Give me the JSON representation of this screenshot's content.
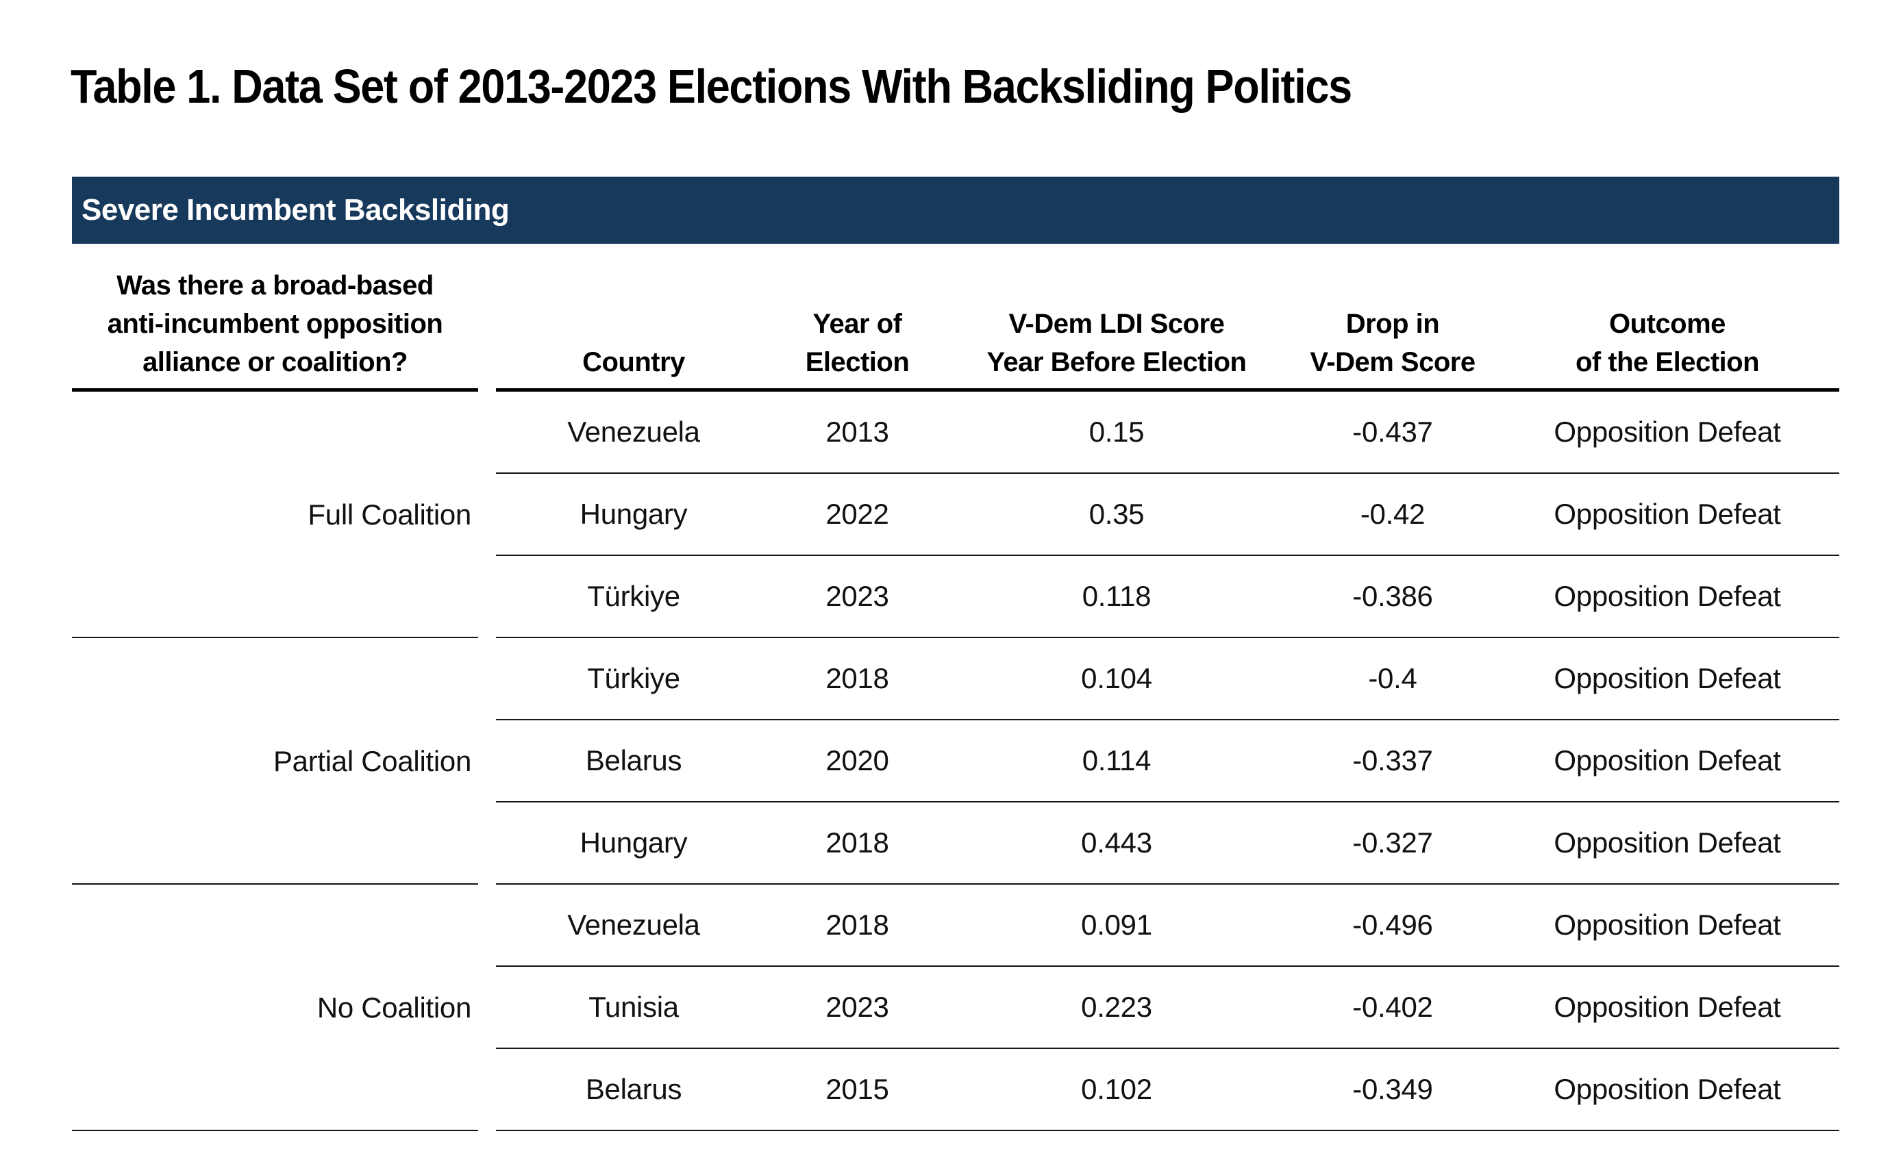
{
  "title": "Table 1. Data Set of 2013-2023 Elections With Backsliding Politics",
  "section_header": "Severe Incumbent Backsliding",
  "colors": {
    "section_bar_bg": "#17395C",
    "section_bar_text": "#FFFFFF",
    "rule_heavy": "#000000",
    "rule_light": "#141414",
    "text": "#111111"
  },
  "headers": {
    "coalition": [
      "Was there a broad-based",
      "anti-incumbent opposition",
      "alliance or coalition?"
    ],
    "country": [
      "Country"
    ],
    "year": [
      "Year of",
      "Election"
    ],
    "ldi": [
      "V-Dem LDI Score",
      "Year Before Election"
    ],
    "drop": [
      "Drop in",
      "V-Dem Score"
    ],
    "outcome": [
      "Outcome",
      "of the Election"
    ]
  },
  "groups": [
    {
      "label": "Full Coalition",
      "rows": [
        {
          "country": "Venezuela",
          "year": "2013",
          "ldi": "0.15",
          "drop": "-0.437",
          "outcome": "Opposition Defeat"
        },
        {
          "country": "Hungary",
          "year": "2022",
          "ldi": "0.35",
          "drop": "-0.42",
          "outcome": "Opposition Defeat"
        },
        {
          "country": "Türkiye",
          "year": "2023",
          "ldi": "0.118",
          "drop": "-0.386",
          "outcome": "Opposition Defeat"
        }
      ]
    },
    {
      "label": "Partial Coalition",
      "rows": [
        {
          "country": "Türkiye",
          "year": "2018",
          "ldi": "0.104",
          "drop": "-0.4",
          "outcome": "Opposition Defeat"
        },
        {
          "country": "Belarus",
          "year": "2020",
          "ldi": "0.114",
          "drop": "-0.337",
          "outcome": "Opposition Defeat"
        },
        {
          "country": "Hungary",
          "year": "2018",
          "ldi": "0.443",
          "drop": "-0.327",
          "outcome": "Opposition Defeat"
        }
      ]
    },
    {
      "label": "No Coalition",
      "rows": [
        {
          "country": "Venezuela",
          "year": "2018",
          "ldi": "0.091",
          "drop": "-0.496",
          "outcome": "Opposition Defeat"
        },
        {
          "country": "Tunisia",
          "year": "2023",
          "ldi": "0.223",
          "drop": "-0.402",
          "outcome": "Opposition Defeat"
        },
        {
          "country": "Belarus",
          "year": "2015",
          "ldi": "0.102",
          "drop": "-0.349",
          "outcome": "Opposition Defeat"
        }
      ]
    }
  ],
  "chart_data": {
    "type": "table",
    "title": "Table 1. Data Set of 2013-2023 Elections With Backsliding Politics",
    "section": "Severe Incumbent Backsliding",
    "columns": [
      "Was there a broad-based anti-incumbent opposition alliance or coalition?",
      "Country",
      "Year of Election",
      "V-Dem LDI Score Year Before Election",
      "Drop in V-Dem Score",
      "Outcome of the Election"
    ],
    "rows": [
      [
        "Full Coalition",
        "Venezuela",
        2013,
        0.15,
        -0.437,
        "Opposition Defeat"
      ],
      [
        "Full Coalition",
        "Hungary",
        2022,
        0.35,
        -0.42,
        "Opposition Defeat"
      ],
      [
        "Full Coalition",
        "Türkiye",
        2023,
        0.118,
        -0.386,
        "Opposition Defeat"
      ],
      [
        "Partial Coalition",
        "Türkiye",
        2018,
        0.104,
        -0.4,
        "Opposition Defeat"
      ],
      [
        "Partial Coalition",
        "Belarus",
        2020,
        0.114,
        -0.337,
        "Opposition Defeat"
      ],
      [
        "Partial Coalition",
        "Hungary",
        2018,
        0.443,
        -0.327,
        "Opposition Defeat"
      ],
      [
        "No Coalition",
        "Venezuela",
        2018,
        0.091,
        -0.496,
        "Opposition Defeat"
      ],
      [
        "No Coalition",
        "Tunisia",
        2023,
        0.223,
        -0.402,
        "Opposition Defeat"
      ],
      [
        "No Coalition",
        "Belarus",
        2015,
        0.102,
        -0.349,
        "Opposition Defeat"
      ]
    ]
  }
}
